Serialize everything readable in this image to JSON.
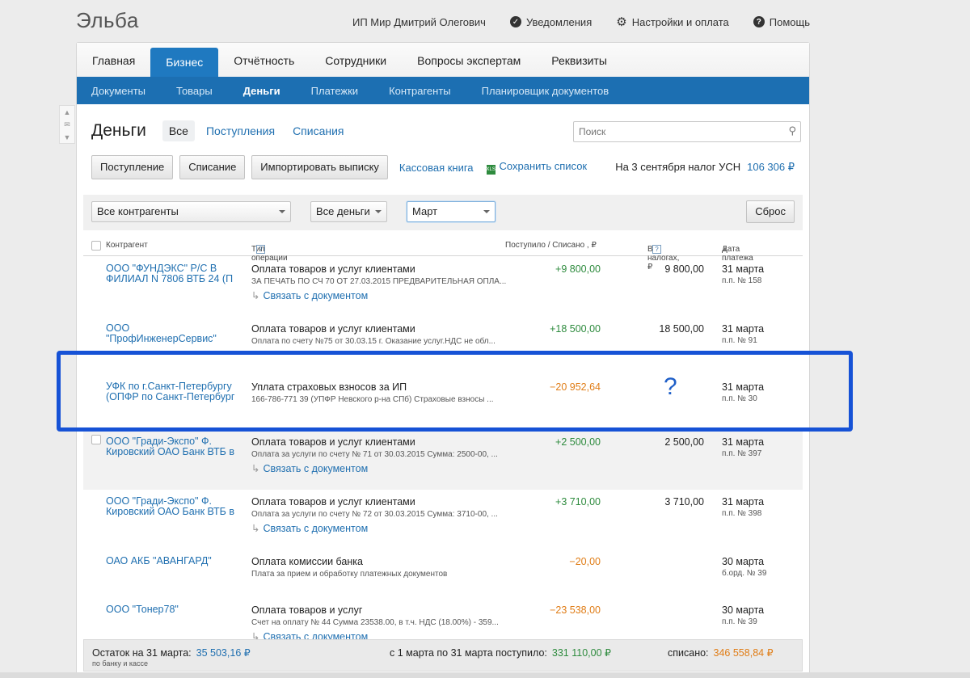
{
  "app": {
    "brand": "Эльба",
    "user": "ИП Мир Дмитрий Олегович",
    "notifications": "Уведомления",
    "settings": "Настройки и оплата",
    "help": "Помощь"
  },
  "main_tabs": [
    "Главная",
    "Бизнес",
    "Отчётность",
    "Сотрудники",
    "Вопросы экспертам",
    "Реквизиты"
  ],
  "sub_tabs": [
    "Документы",
    "Товары",
    "Деньги",
    "Платежки",
    "Контрагенты",
    "Планировщик документов"
  ],
  "page": {
    "title": "Деньги",
    "filters": [
      "Все",
      "Поступления",
      "Списания"
    ],
    "search_placeholder": "Поиск"
  },
  "actions": {
    "income_btn": "Поступление",
    "expense_btn": "Списание",
    "import_btn": "Импортировать  выписку",
    "cashbook_link": "Кассовая книга",
    "save_icon": "XLS",
    "save_link": "Сохранить список",
    "tax_text": "На 3 сентября налог УСН",
    "tax_amount": "106 306 ₽"
  },
  "filterbar": {
    "counterparty": "Все контрагенты",
    "money": "Все деньги",
    "month": "Март",
    "reset": "Сброс"
  },
  "table": {
    "headers": {
      "counterparty": "Контрагент",
      "operation": "Тип операции",
      "amount": "Поступило / Списано , ₽",
      "taxes": "В налогах, ₽",
      "date": "Дата платежа"
    },
    "bind_label": "Связать с документом",
    "rows": [
      {
        "counterparty": "ООО \"ФУНДЭКС\" Р/С В ФИЛИАЛ N 7806 ВТБ 24 (П",
        "operation": "Оплата товаров и услуг клиентами",
        "desc": "ЗА ПЕЧАТЬ ПО СЧ 70 ОТ 27.03.2015 ПРЕДВАРИТЕЛЬНАЯ ОПЛА...",
        "amount": "+9 800,00",
        "tax": "9 800,00",
        "date": "31 марта",
        "num": "п.п. № 158"
      },
      {
        "counterparty": "ООО \"ПрофИнженерСервис\"",
        "operation": "Оплата товаров и услуг клиентами",
        "desc": "Оплата по счету №75 от 30.03.15 г. Оказание услуг.НДС не обл...",
        "amount": "+18 500,00",
        "tax": "18 500,00",
        "date": "31 марта",
        "num": "п.п. № 91"
      },
      {
        "counterparty": "УФК по г.Санкт-Петербургу (ОПФР по Санкт-Петербург",
        "operation": "Уплата страховых взносов за ИП",
        "desc": "166-786-771 39 (УПФР Невского р-на СПб) Страховые взносы ...",
        "amount": "−20 952,64",
        "tax": "?",
        "date": "31 марта",
        "num": "п.п. № 30"
      },
      {
        "counterparty": "ООО \"Гради-Экспо\" Ф. Кировский ОАО Банк ВТБ в",
        "operation": "Оплата товаров и услуг клиентами",
        "desc": "Оплата за услуги по счету № 71 от 30.03.2015 Сумма: 2500-00, ...",
        "amount": "+2 500,00",
        "tax": "2 500,00",
        "date": "31 марта",
        "num": "п.п. № 397"
      },
      {
        "counterparty": "ООО \"Гради-Экспо\" Ф. Кировский ОАО Банк ВТБ в",
        "operation": "Оплата товаров и услуг клиентами",
        "desc": "Оплата за услуги по счету № 72 от 30.03.2015 Сумма: 3710-00, ...",
        "amount": "+3 710,00",
        "tax": "3 710,00",
        "date": "31 марта",
        "num": "п.п. № 398"
      },
      {
        "counterparty": "ОАО АКБ \"АВАНГАРД\"",
        "operation": "Оплата комиссии банка",
        "desc": "Плата за прием и обработку платежных документов",
        "amount": "−20,00",
        "tax": "",
        "date": "30 марта",
        "num": "б.орд. № 39"
      },
      {
        "counterparty": "ООО \"Тонер78\"",
        "operation": "Оплата товаров и услуг",
        "desc": "Счет на оплату № 44 Сумма 23538.00, в т.ч. НДС (18.00%) - 359...",
        "amount": "−23 538,00",
        "tax": "",
        "date": "30 марта",
        "num": "п.п. № 39"
      }
    ]
  },
  "footer": {
    "balance_label": "Остаток на 31 марта:",
    "balance_value": "35 503,16 ₽",
    "balance_sub": "по банку и кассе",
    "income_label": "с 1 марта по 31 марта поступило:",
    "income_value": "331 110,00 ₽",
    "expense_label": "списано:",
    "expense_value": "346 558,84 ₽"
  }
}
